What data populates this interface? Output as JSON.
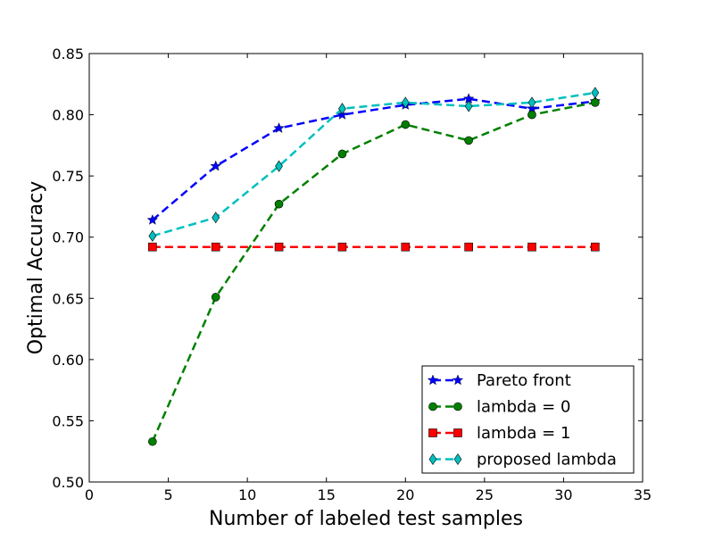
{
  "chart_data": {
    "type": "line",
    "title": "",
    "xlabel": "Number of labeled test samples",
    "ylabel": "Optimal Accuracy",
    "xlim": [
      0,
      35
    ],
    "ylim": [
      0.5,
      0.85
    ],
    "xticks": [
      "0",
      "5",
      "10",
      "15",
      "20",
      "25",
      "30",
      "35"
    ],
    "yticks": [
      "0.50",
      "0.55",
      "0.60",
      "0.65",
      "0.70",
      "0.75",
      "0.80",
      "0.85"
    ],
    "grid": false,
    "legend_position": "bottom-right",
    "series": [
      {
        "name": "Pareto front",
        "color": "#0000ff",
        "marker": "star",
        "line_style": "dashed",
        "x": [
          4,
          8,
          12,
          16,
          20,
          24,
          28,
          32
        ],
        "y": [
          0.714,
          0.758,
          0.789,
          0.8,
          0.808,
          0.813,
          0.805,
          0.811
        ]
      },
      {
        "name": "lambda = 0",
        "color": "#008000",
        "marker": "circle",
        "line_style": "dashed",
        "x": [
          4,
          8,
          12,
          16,
          20,
          24,
          28,
          32
        ],
        "y": [
          0.533,
          0.651,
          0.727,
          0.768,
          0.792,
          0.779,
          0.8,
          0.81
        ]
      },
      {
        "name": "lambda = 1",
        "color": "#ff0000",
        "marker": "square",
        "line_style": "dashed",
        "x": [
          4,
          8,
          12,
          16,
          20,
          24,
          28,
          32
        ],
        "y": [
          0.692,
          0.692,
          0.692,
          0.692,
          0.692,
          0.692,
          0.692,
          0.692
        ]
      },
      {
        "name": "proposed lambda",
        "color": "#00bfbf",
        "marker": "diamond",
        "line_style": "dashed",
        "x": [
          4,
          8,
          12,
          16,
          20,
          24,
          28,
          32
        ],
        "y": [
          0.701,
          0.716,
          0.758,
          0.805,
          0.81,
          0.807,
          0.81,
          0.818
        ]
      }
    ]
  }
}
